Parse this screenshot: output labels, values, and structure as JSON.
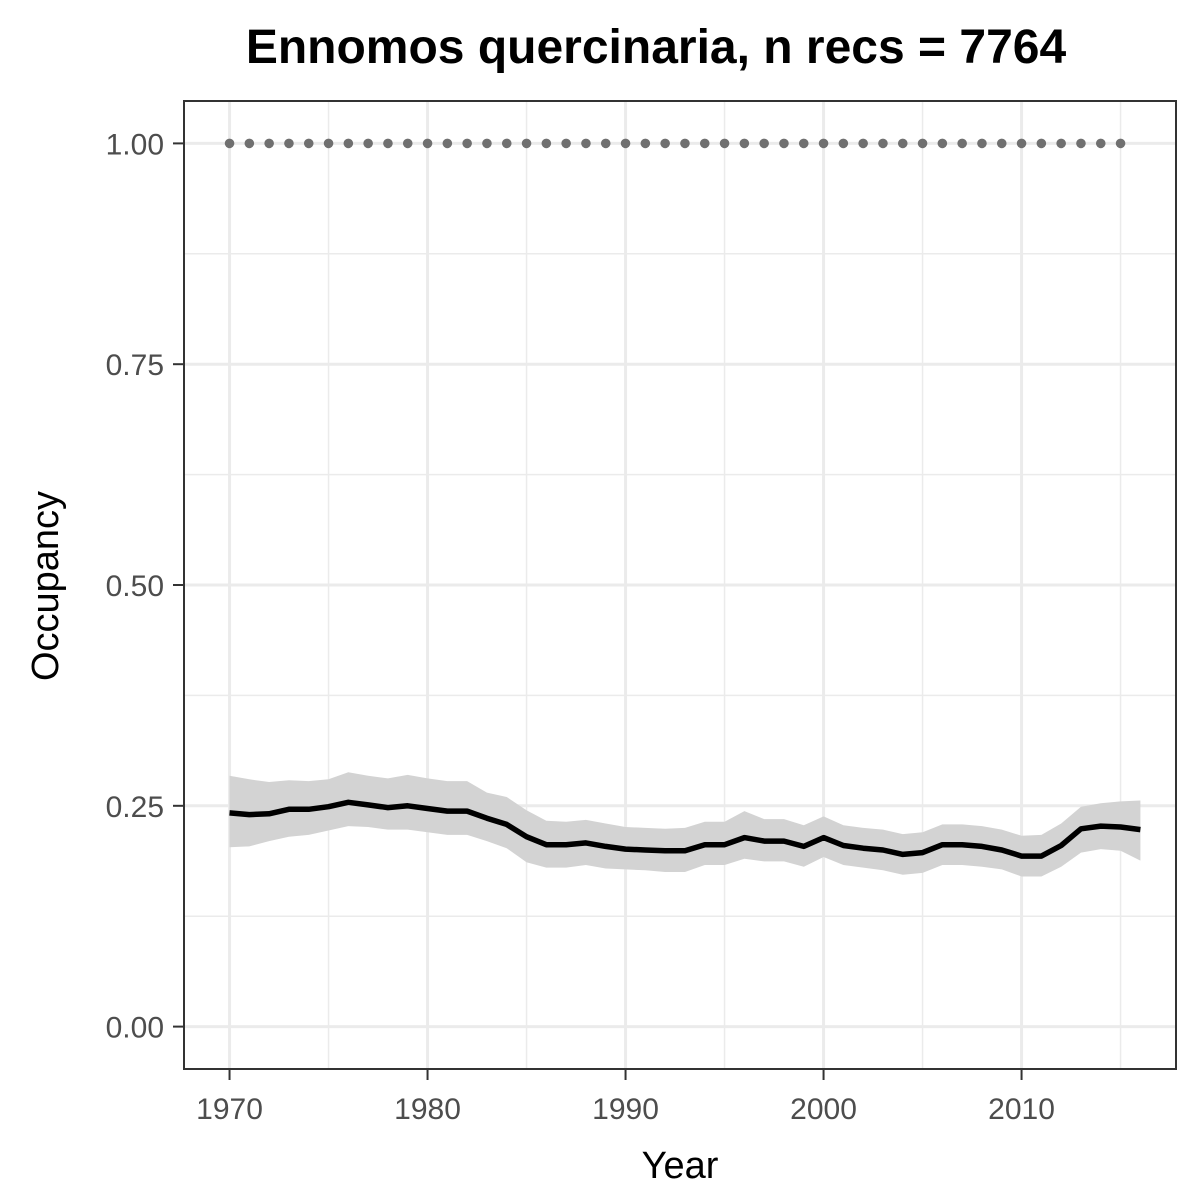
{
  "chart_data": {
    "type": "line",
    "title": "Ennomos quercinaria, n recs = 7764",
    "xlabel": "Year",
    "ylabel": "Occupancy",
    "xlim": [
      1967.7,
      2017.8
    ],
    "ylim": [
      -0.048,
      1.048
    ],
    "x_ticks": [
      1970,
      1980,
      1990,
      2000,
      2010
    ],
    "x_tick_labels": [
      "1970",
      "1980",
      "1990",
      "2000",
      "2010"
    ],
    "y_ticks": [
      0,
      0.25,
      0.5,
      0.75,
      1.0
    ],
    "y_tick_labels": [
      "0.00",
      "0.25",
      "0.50",
      "0.75",
      "1.00"
    ],
    "grid": true,
    "legend": "none",
    "series": [
      {
        "x": [
          1970,
          1971,
          1972,
          1973,
          1974,
          1975,
          1976,
          1977,
          1978,
          1979,
          1980,
          1981,
          1982,
          1983,
          1984,
          1985,
          1986,
          1987,
          1988,
          1989,
          1990,
          1991,
          1992,
          1993,
          1994,
          1995,
          1996,
          1997,
          1998,
          1999,
          2000,
          2001,
          2002,
          2003,
          2004,
          2005,
          2006,
          2007,
          2008,
          2009,
          2010,
          2011,
          2012,
          2013,
          2014,
          2015,
          2016
        ],
        "values": [
          0.242,
          0.24,
          0.241,
          0.246,
          0.246,
          0.249,
          0.254,
          0.251,
          0.248,
          0.25,
          0.247,
          0.244,
          0.244,
          0.236,
          0.229,
          0.215,
          0.206,
          0.206,
          0.208,
          0.204,
          0.201,
          0.2,
          0.199,
          0.199,
          0.206,
          0.206,
          0.214,
          0.21,
          0.21,
          0.204,
          0.214,
          0.205,
          0.202,
          0.2,
          0.195,
          0.197,
          0.206,
          0.206,
          0.204,
          0.2,
          0.193,
          0.193,
          0.205,
          0.224,
          0.227,
          0.226,
          0.223
        ],
        "lower": [
          0.203,
          0.204,
          0.21,
          0.215,
          0.217,
          0.222,
          0.227,
          0.226,
          0.223,
          0.223,
          0.22,
          0.217,
          0.217,
          0.21,
          0.202,
          0.186,
          0.18,
          0.18,
          0.183,
          0.179,
          0.178,
          0.177,
          0.175,
          0.175,
          0.183,
          0.183,
          0.19,
          0.187,
          0.187,
          0.181,
          0.192,
          0.183,
          0.18,
          0.177,
          0.172,
          0.174,
          0.183,
          0.183,
          0.181,
          0.178,
          0.17,
          0.17,
          0.181,
          0.197,
          0.201,
          0.199,
          0.188
        ],
        "upper": [
          0.284,
          0.28,
          0.277,
          0.279,
          0.278,
          0.28,
          0.288,
          0.284,
          0.281,
          0.285,
          0.281,
          0.278,
          0.278,
          0.265,
          0.26,
          0.245,
          0.233,
          0.232,
          0.234,
          0.23,
          0.226,
          0.225,
          0.224,
          0.225,
          0.232,
          0.232,
          0.244,
          0.235,
          0.235,
          0.228,
          0.238,
          0.228,
          0.225,
          0.223,
          0.218,
          0.22,
          0.229,
          0.229,
          0.227,
          0.223,
          0.216,
          0.217,
          0.23,
          0.249,
          0.253,
          0.255,
          0.256
        ]
      },
      {
        "x": [
          1970,
          1971,
          1972,
          1973,
          1974,
          1975,
          1976,
          1977,
          1978,
          1979,
          1980,
          1981,
          1982,
          1983,
          1984,
          1985,
          1986,
          1987,
          1988,
          1989,
          1990,
          1991,
          1992,
          1993,
          1994,
          1995,
          1996,
          1997,
          1998,
          1999,
          2000,
          2001,
          2002,
          2003,
          2004,
          2005,
          2006,
          2007,
          2008,
          2009,
          2010,
          2011,
          2012,
          2013,
          2014,
          2015
        ],
        "values": [
          1,
          1,
          1,
          1,
          1,
          1,
          1,
          1,
          1,
          1,
          1,
          1,
          1,
          1,
          1,
          1,
          1,
          1,
          1,
          1,
          1,
          1,
          1,
          1,
          1,
          1,
          1,
          1,
          1,
          1,
          1,
          1,
          1,
          1,
          1,
          1,
          1,
          1,
          1,
          1,
          1,
          1,
          1,
          1,
          1,
          1
        ]
      }
    ]
  },
  "colors": {
    "line": "#000000",
    "ribbon": "#d3d3d3",
    "points": "#707070",
    "grid": "#ebebeb",
    "panel_border": "#333333",
    "tick_text": "#4d4d4d"
  }
}
